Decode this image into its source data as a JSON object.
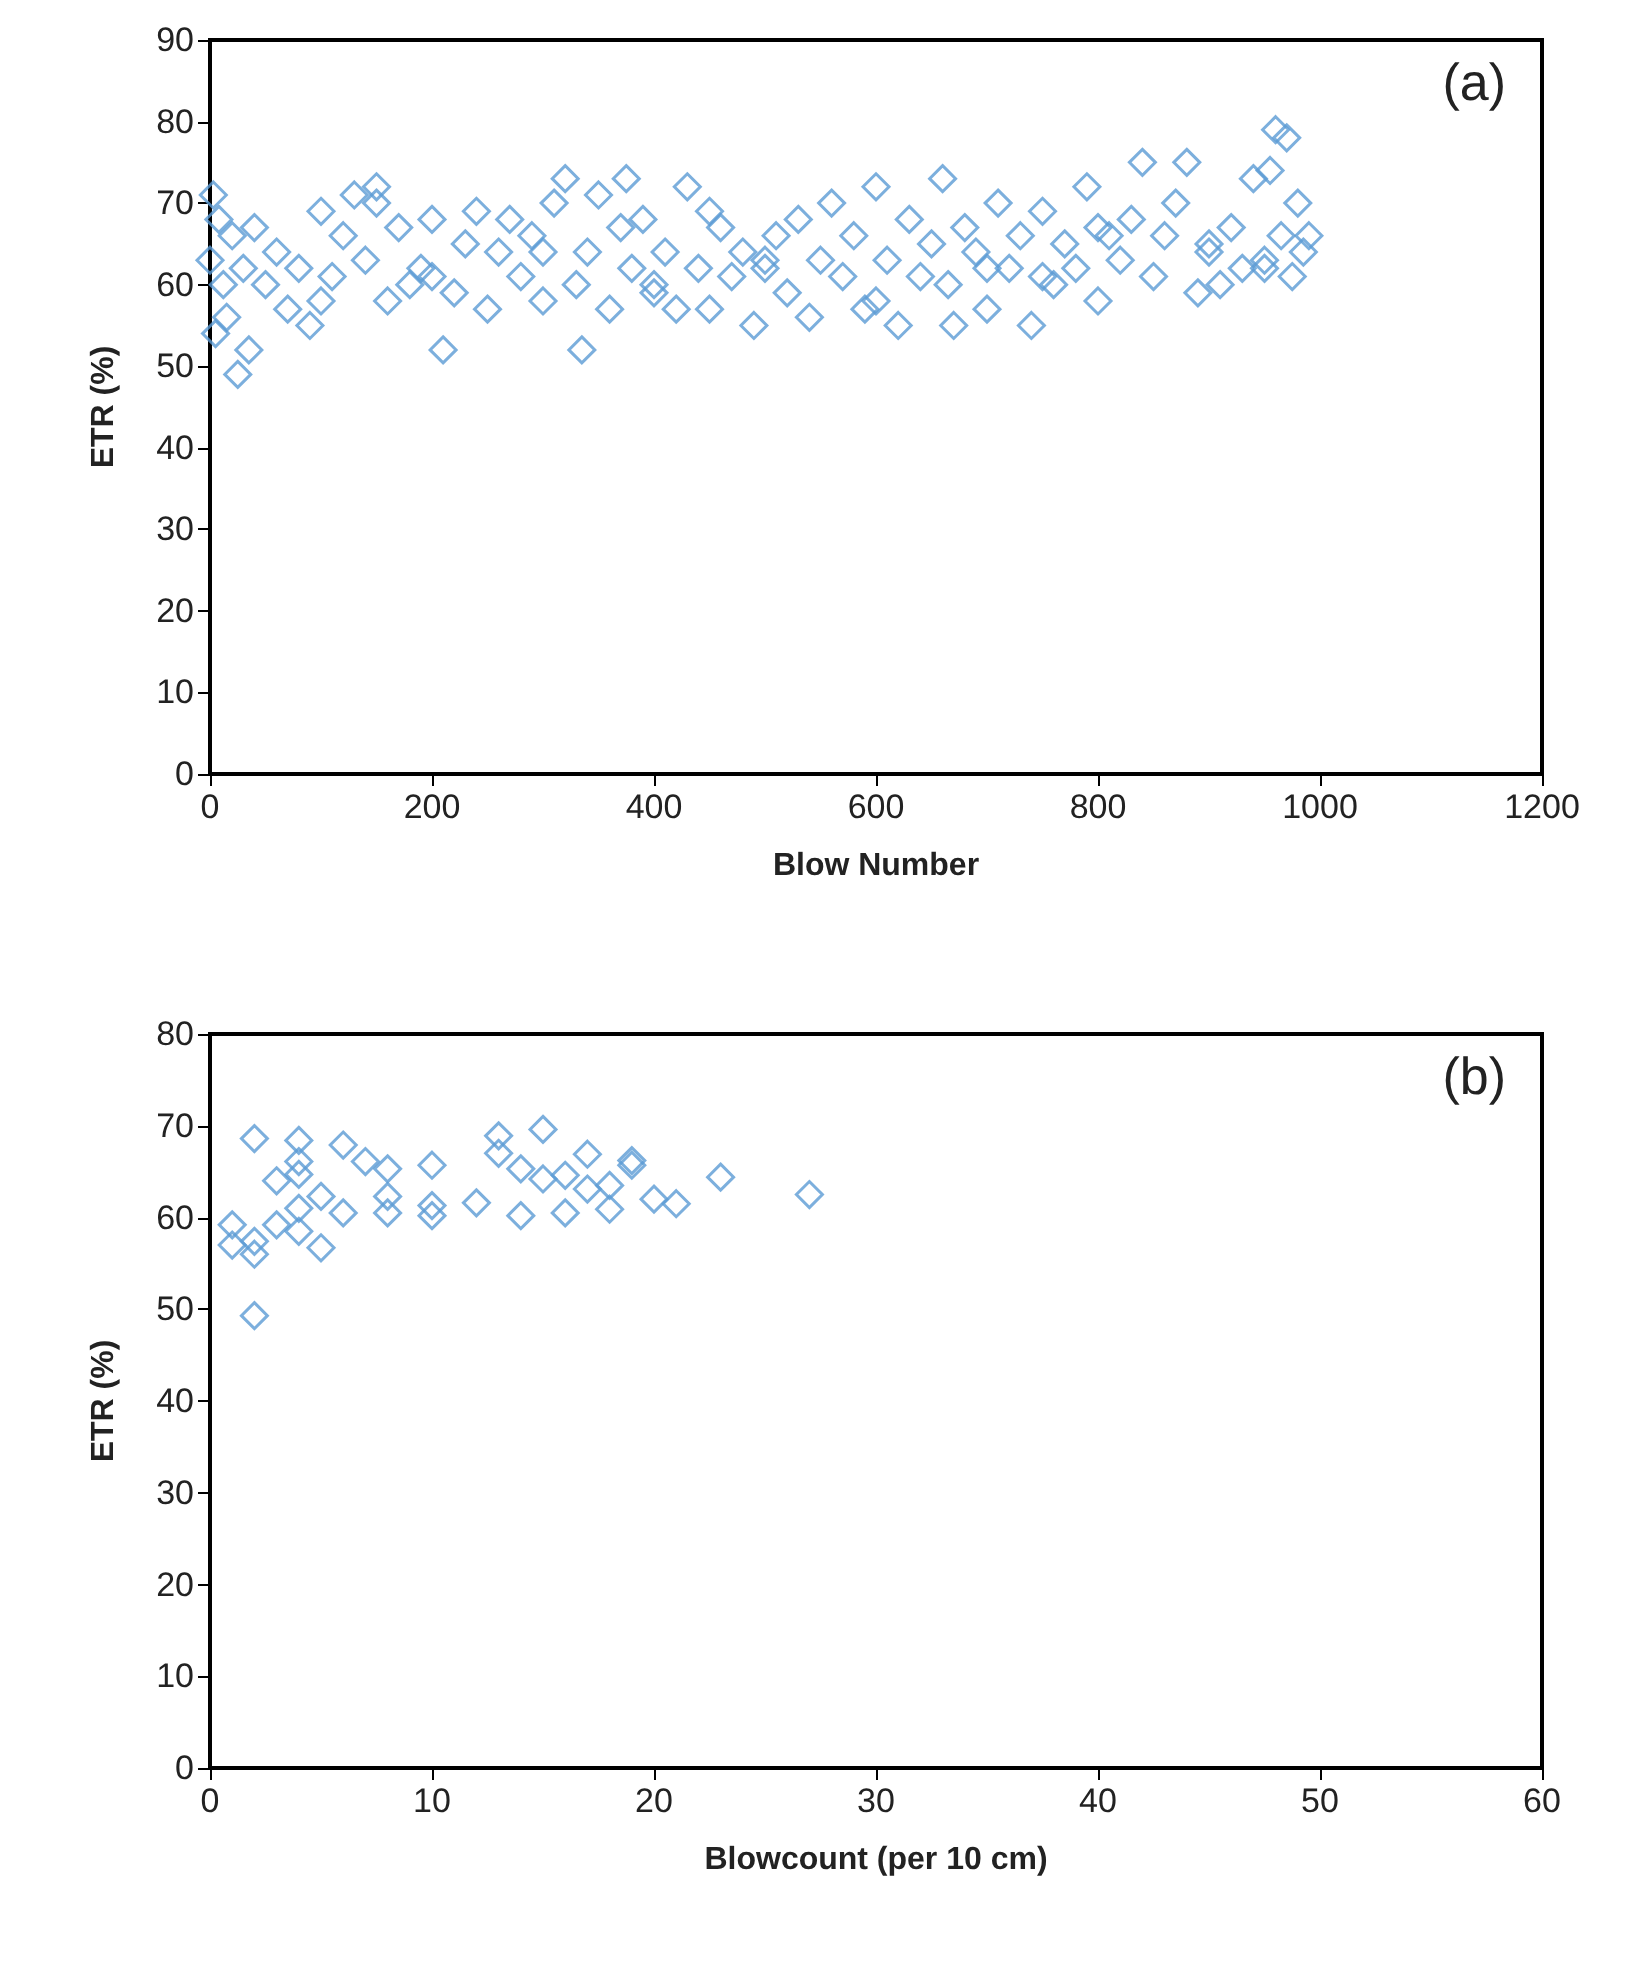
{
  "chart_data": [
    {
      "type": "scatter",
      "xlabel": "Blow Number",
      "ylabel": "ETR (%)",
      "annotations": [
        "(a)"
      ],
      "marker": "diamond",
      "grid": false,
      "xlim": [
        0,
        1200
      ],
      "xticks": [
        0,
        200,
        400,
        600,
        800,
        1000,
        1200
      ],
      "ylim": [
        0,
        90
      ],
      "yticks": [
        0,
        10,
        20,
        30,
        40,
        50,
        60,
        70,
        80,
        90
      ],
      "series": [
        {
          "color": "#5b9bd5",
          "x": [
            0,
            3,
            5,
            8,
            12,
            15,
            20,
            25,
            30,
            35,
            40,
            50,
            60,
            70,
            80,
            90,
            100,
            110,
            120,
            130,
            140,
            150,
            160,
            170,
            180,
            190,
            200,
            210,
            220,
            230,
            240,
            250,
            260,
            270,
            280,
            290,
            300,
            310,
            320,
            330,
            335,
            340,
            350,
            360,
            370,
            375,
            380,
            390,
            400,
            410,
            420,
            430,
            440,
            450,
            460,
            470,
            480,
            490,
            500,
            510,
            520,
            530,
            540,
            550,
            560,
            570,
            580,
            590,
            600,
            610,
            620,
            630,
            640,
            650,
            660,
            665,
            670,
            680,
            690,
            700,
            710,
            720,
            730,
            740,
            750,
            760,
            770,
            780,
            790,
            800,
            810,
            820,
            830,
            840,
            850,
            860,
            870,
            880,
            890,
            900,
            910,
            920,
            930,
            940,
            950,
            955,
            960,
            965,
            970,
            975,
            980,
            985,
            990,
            100,
            200,
            300,
            400,
            500,
            600,
            700,
            800,
            900,
            150,
            450,
            750,
            950
          ],
          "values": [
            63,
            71,
            54,
            68,
            60,
            56,
            66,
            49,
            62,
            52,
            67,
            60,
            64,
            57,
            62,
            55,
            69,
            61,
            66,
            71,
            63,
            72,
            58,
            67,
            60,
            62,
            68,
            52,
            59,
            65,
            69,
            57,
            64,
            68,
            61,
            66,
            58,
            70,
            73,
            60,
            52,
            64,
            71,
            57,
            67,
            73,
            62,
            68,
            59,
            64,
            57,
            72,
            62,
            57,
            67,
            61,
            64,
            55,
            62,
            66,
            59,
            68,
            56,
            63,
            70,
            61,
            66,
            57,
            72,
            63,
            55,
            68,
            61,
            65,
            73,
            60,
            55,
            67,
            64,
            57,
            70,
            62,
            66,
            55,
            69,
            60,
            65,
            62,
            72,
            58,
            66,
            63,
            68,
            75,
            61,
            66,
            70,
            75,
            59,
            64,
            60,
            67,
            62,
            73,
            63,
            74,
            79,
            66,
            78,
            61,
            70,
            64,
            66,
            58,
            61,
            64,
            60,
            63,
            58,
            62,
            67,
            65,
            70,
            69,
            61,
            62
          ]
        }
      ]
    },
    {
      "type": "scatter",
      "xlabel": "Blowcount (per 10 cm)",
      "ylabel": "ETR (%)",
      "annotations": [
        "(b)"
      ],
      "marker": "diamond",
      "grid": false,
      "xlim": [
        0,
        60
      ],
      "xticks": [
        0,
        10,
        20,
        30,
        40,
        50,
        60
      ],
      "ylim": [
        0,
        80
      ],
      "yticks": [
        0,
        10,
        20,
        30,
        40,
        50,
        60,
        70,
        80
      ],
      "series": [
        {
          "color": "#5b9bd5",
          "x": [
            2,
            4,
            6,
            10,
            13,
            15,
            17,
            19,
            23,
            27,
            2,
            1,
            1,
            2,
            2,
            4,
            4,
            4,
            5,
            5,
            6,
            8,
            8,
            8,
            10,
            10,
            12,
            13,
            14,
            14,
            15,
            16,
            17,
            18,
            19,
            20,
            21,
            3,
            3,
            4,
            7,
            16,
            18
          ],
          "values": [
            68.6,
            68.4,
            67.9,
            65.7,
            68.9,
            69.6,
            66.9,
            66.2,
            64.4,
            62.5,
            49.3,
            59.2,
            57,
            56,
            57.4,
            64.7,
            61,
            58.5,
            56.7,
            62.3,
            60.5,
            65.3,
            62.3,
            60.5,
            61.3,
            60.2,
            61.6,
            67,
            65.3,
            60.2,
            64.2,
            60.5,
            63.1,
            60.9,
            65.7,
            62,
            61.5,
            64,
            59.2,
            66.1,
            66.1,
            64.6,
            63.5
          ]
        }
      ]
    }
  ]
}
